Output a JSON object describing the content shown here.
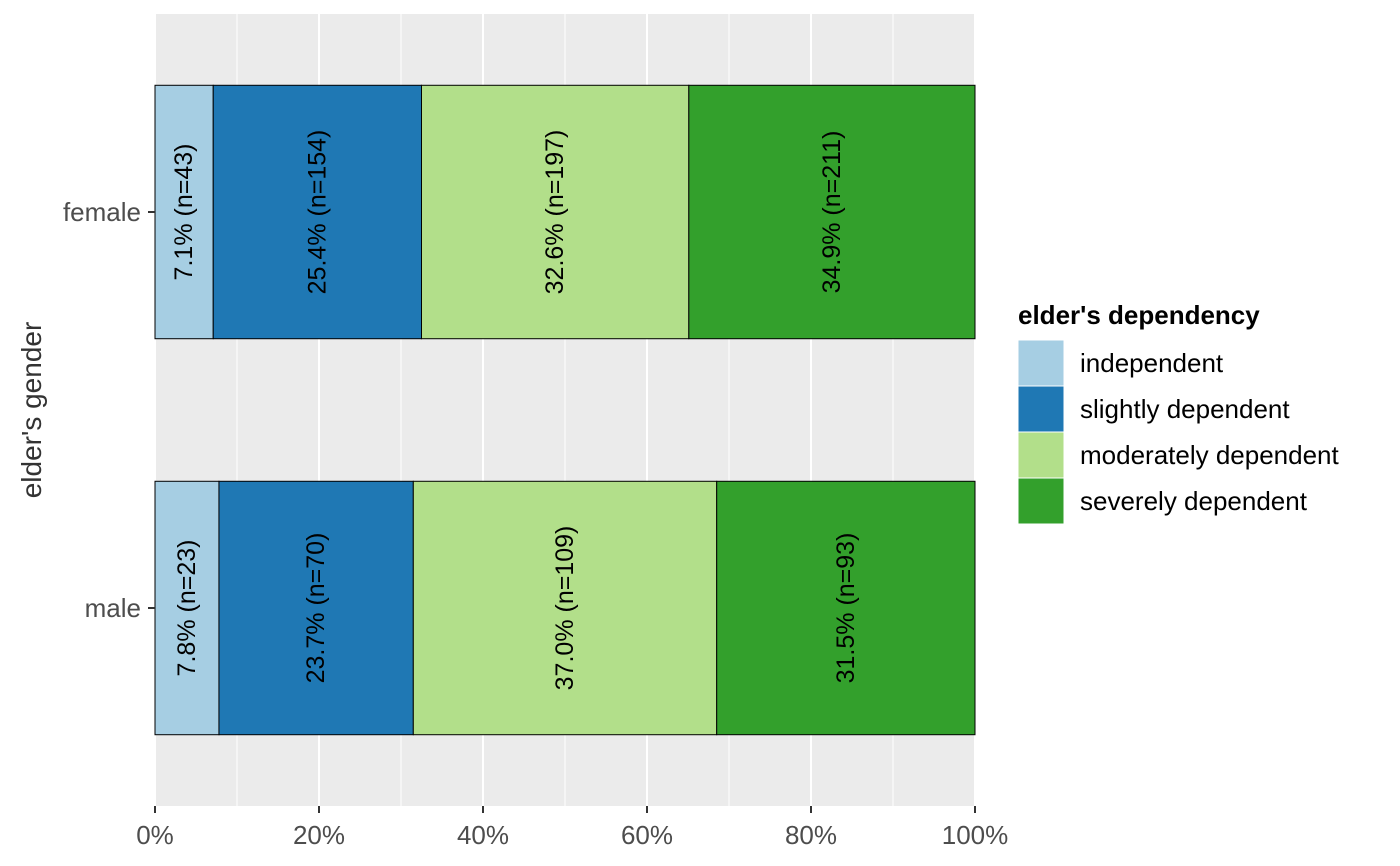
{
  "chart_data": {
    "type": "bar",
    "orientation": "horizontal",
    "stacked": true,
    "percent_axis": true,
    "categories": [
      "female",
      "male"
    ],
    "ylabel": "elder's gender",
    "xlim": [
      0,
      100
    ],
    "x_ticks": [
      "0%",
      "20%",
      "40%",
      "60%",
      "80%",
      "100%"
    ],
    "grid": true,
    "legend": {
      "title": "elder's dependency",
      "position": "right"
    },
    "series": [
      {
        "name": "independent",
        "color": "#a6cee3",
        "values": [
          7.1,
          7.8
        ],
        "labels": [
          "7.1% (n=43)",
          "7.8% (n=23)"
        ]
      },
      {
        "name": "slightly dependent",
        "color": "#1f78b4",
        "values": [
          25.4,
          23.7
        ],
        "labels": [
          "25.4% (n=154)",
          "23.7% (n=70)"
        ]
      },
      {
        "name": "moderately dependent",
        "color": "#b2df8a",
        "values": [
          32.6,
          37.0
        ],
        "labels": [
          "32.6% (n=197)",
          "37.0% (n=109)"
        ]
      },
      {
        "name": "severely dependent",
        "color": "#33a02c",
        "values": [
          34.9,
          31.5
        ],
        "labels": [
          "34.9% (n=211)",
          "31.5% (n=93)"
        ]
      }
    ]
  }
}
